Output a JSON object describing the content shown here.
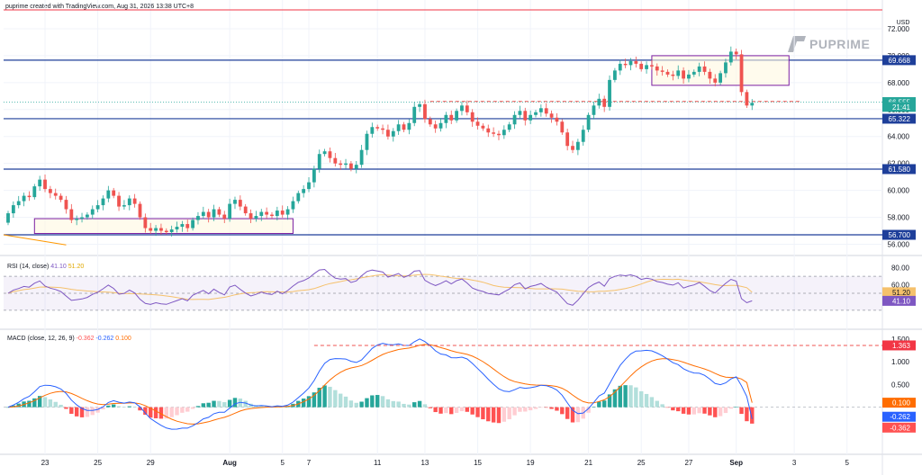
{
  "header": {
    "text": "puprime created with TradingView.com, Aug 31, 2026 13:38 UTC+8"
  },
  "logo": {
    "text": "PUPRIME"
  },
  "currency": "USD",
  "colors": {
    "up": "#26a69a",
    "down": "#ef5350",
    "level_line": "#1e3f9a",
    "top_line": "#f23645",
    "rsi": "#7e57c2",
    "rsi_ma": "#f5c16c",
    "macd": "#2962ff",
    "signal": "#ff6d00",
    "hist_up_strong": "#26a69a",
    "hist_up_weak": "#b2dfdb",
    "hist_down_strong": "#ff5252",
    "hist_down_weak": "#ffcdd2",
    "box_border": "#7b1fa2",
    "box_fill": "#fff8e1"
  },
  "chart_data": [
    {
      "type": "candlestick",
      "title": "",
      "x_ticks": [
        "23",
        "25",
        "29",
        "Aug",
        "5",
        "7",
        "11",
        "13",
        "15",
        "19",
        "21",
        "25",
        "27",
        "Sep",
        "3",
        "5"
      ],
      "y_ticks": [
        "72.000",
        "70.000",
        "68.000",
        "66.000",
        "64.000",
        "62.000",
        "60.000",
        "58.000",
        "56.000"
      ],
      "ylim": [
        55.7,
        73.2
      ],
      "horizontal_levels": [
        69.668,
        65.322,
        61.58,
        56.7
      ],
      "current_price": 66.555,
      "countdown": "21:41",
      "top_line": 73.4,
      "price_labels": [
        {
          "text": "69.668",
          "value": 69.668,
          "kind": "level"
        },
        {
          "text": "66.555",
          "value": 66.555,
          "kind": "price"
        },
        {
          "text": "21:41",
          "value": 66.2,
          "kind": "price"
        },
        {
          "text": "65.322",
          "value": 65.322,
          "kind": "level"
        },
        {
          "text": "61.580",
          "value": 61.58,
          "kind": "level"
        },
        {
          "text": "56.700",
          "value": 56.7,
          "kind": "level"
        }
      ],
      "boxes": [
        {
          "x_start": 5,
          "x_end": 54,
          "y_low": 56.8,
          "y_high": 57.9
        },
        {
          "x_start": 122,
          "x_end": 148,
          "y_low": 67.8,
          "y_high": 70.0
        }
      ],
      "resistance_dashed": {
        "value": 66.6,
        "x_start": 80,
        "x_end": 150
      },
      "closes": [
        58.3,
        58.9,
        59.2,
        59.6,
        59.5,
        60.3,
        60.8,
        60.1,
        59.8,
        59.6,
        59.3,
        58.6,
        57.8,
        57.9,
        58.0,
        58.2,
        58.6,
        58.9,
        59.4,
        60.0,
        59.6,
        58.8,
        58.9,
        59.4,
        59.0,
        58.0,
        57.2,
        57.0,
        57.2,
        57.0,
        56.9,
        57.1,
        57.3,
        57.5,
        57.2,
        57.8,
        58.1,
        58.4,
        58.0,
        58.6,
        58.2,
        57.9,
        59.0,
        59.3,
        58.8,
        58.3,
        57.9,
        58.1,
        58.4,
        58.2,
        58.1,
        58.5,
        58.2,
        58.6,
        59.2,
        59.8,
        60.1,
        60.6,
        61.6,
        62.7,
        62.9,
        62.4,
        62.0,
        61.9,
        62.0,
        61.6,
        61.9,
        63.0,
        64.2,
        64.7,
        64.6,
        64.5,
        64.0,
        64.4,
        64.9,
        64.5,
        65.0,
        66.2,
        66.4,
        65.3,
        64.9,
        64.6,
        65.0,
        65.6,
        65.2,
        65.9,
        66.3,
        65.8,
        65.1,
        64.8,
        64.6,
        64.3,
        64.2,
        64.1,
        64.5,
        64.9,
        65.6,
        65.9,
        65.2,
        65.6,
        65.8,
        66.1,
        65.7,
        65.4,
        65.1,
        64.3,
        63.3,
        63.0,
        63.6,
        64.5,
        65.6,
        66.3,
        66.8,
        66.2,
        68.2,
        68.9,
        69.4,
        69.3,
        69.6,
        69.4,
        69.0,
        69.3,
        69.2,
        68.9,
        68.8,
        68.6,
        68.5,
        68.9,
        68.3,
        68.6,
        68.8,
        69.2,
        68.8,
        68.3,
        68.0,
        68.7,
        69.5,
        70.3,
        70.1,
        67.3,
        66.3,
        66.5
      ]
    },
    {
      "type": "line",
      "title": "RSI (14, close)",
      "values_text": [
        "41.10",
        "51.20"
      ],
      "y_ticks": [
        "80.00",
        "60.00",
        "40.00"
      ],
      "ylim": [
        14,
        86
      ],
      "bands": [
        70,
        50,
        30
      ],
      "series": [
        {
          "name": "RSI",
          "value_label": "41.10",
          "last": 41.1
        },
        {
          "name": "RSI-MA",
          "value_label": "51.20",
          "last": 51.2
        }
      ]
    },
    {
      "type": "bar",
      "title": "MACD (close, 12, 26, 9)",
      "values_text": [
        "-0.362",
        "-0.262",
        "0.100"
      ],
      "y_ticks": [
        "1.500",
        "1.000",
        "0.500"
      ],
      "ylim": [
        -0.9,
        1.6
      ],
      "dashed_level": 1.363,
      "labels": [
        {
          "text": "1.363",
          "value": 1.363,
          "color": "#f23645"
        },
        {
          "text": "0.100",
          "value": 0.1,
          "color": "#ff6d00"
        },
        {
          "text": "-0.262",
          "value": -0.262,
          "color": "#2962ff"
        },
        {
          "text": "-0.362",
          "value": -0.362,
          "color": "#ff5252"
        }
      ]
    }
  ]
}
